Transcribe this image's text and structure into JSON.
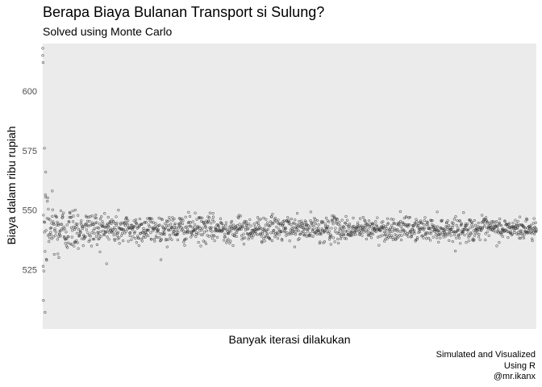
{
  "chart_data": {
    "type": "scatter",
    "title": "Berapa Biaya Bulanan Transport si Sulung?",
    "subtitle": "Solved using Monte Carlo",
    "xlabel": "Banyak iterasi dilakukan",
    "ylabel": "Biaya dalam ribu rupiah",
    "ylim": [
      500,
      620
    ],
    "xlim": [
      1,
      1500
    ],
    "yticks": [
      "525",
      "550",
      "575",
      "600"
    ],
    "ytick_values": [
      525,
      550,
      575,
      600
    ],
    "x_tick_labels_shown": false,
    "grid": false,
    "background_color": "#ebebeb",
    "point_color": "#333333",
    "series": [
      {
        "n_points": 1500,
        "convergence_value": 542,
        "sample_points": [
          {
            "x": 1,
            "y": 615
          },
          {
            "x": 2,
            "y": 612
          },
          {
            "x": 3,
            "y": 512
          },
          {
            "x": 8,
            "y": 507
          },
          {
            "x": 6,
            "y": 576
          },
          {
            "x": 10,
            "y": 566
          },
          {
            "x": 30,
            "y": 558
          },
          {
            "x": 50,
            "y": 530
          },
          {
            "x": 100,
            "y": 550
          },
          {
            "x": 200,
            "y": 547
          },
          {
            "x": 400,
            "y": 541
          },
          {
            "x": 800,
            "y": 542
          },
          {
            "x": 1200,
            "y": 543
          },
          {
            "x": 1500,
            "y": 542
          }
        ]
      }
    ],
    "caption": [
      "Simulated and Visualized",
      "Using R",
      "@mr.ikanx"
    ]
  }
}
